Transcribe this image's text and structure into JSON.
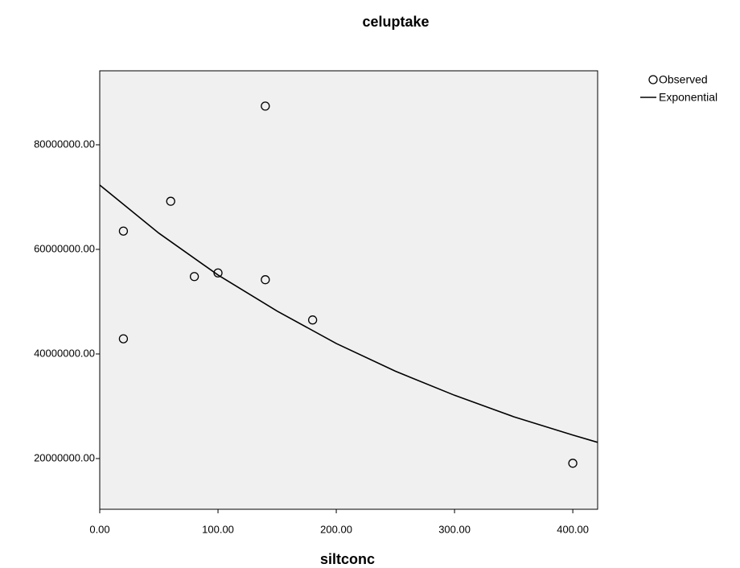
{
  "chart_data": {
    "type": "scatter",
    "title": "celuptake",
    "x_label": "siltconc",
    "series": [
      {
        "name": "Observed",
        "type": "scatter",
        "color": "#000000",
        "x": [
          20,
          20,
          60,
          80,
          100,
          140,
          140,
          180,
          400
        ],
        "values": [
          63500000,
          42900000,
          69200000,
          54800000,
          55500000,
          87400000,
          54200000,
          46500000,
          19100000
        ]
      },
      {
        "name": "Exponential",
        "type": "line",
        "color": "#000000",
        "x": [
          0,
          50,
          100,
          150,
          200,
          250,
          300,
          350,
          400,
          421
        ],
        "values": [
          72300000,
          63100000,
          55100000,
          48200000,
          42000000,
          36700000,
          32100000,
          28000000,
          24500000,
          23100000
        ]
      }
    ],
    "xlim": [
      0,
      421
    ],
    "ylim": [
      10300000,
      94150000
    ],
    "xticks": [
      {
        "value": 0,
        "label": "0.00"
      },
      {
        "value": 100,
        "label": "100.00"
      },
      {
        "value": 200,
        "label": "200.00"
      },
      {
        "value": 300,
        "label": "300.00"
      },
      {
        "value": 400,
        "label": "400.00"
      }
    ],
    "yticks": [
      {
        "value": 20000000,
        "label": "20000000.00"
      },
      {
        "value": 40000000,
        "label": "40000000.00"
      },
      {
        "value": 60000000,
        "label": "60000000.00"
      },
      {
        "value": 80000000,
        "label": "80000000.00"
      }
    ],
    "plot_background": "#f0f0f0",
    "grid": false,
    "legend": "right"
  }
}
